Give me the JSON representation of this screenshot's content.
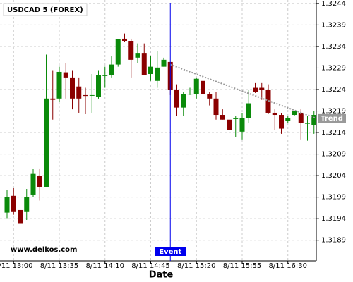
{
  "chart_data": {
    "type": "candlestick",
    "title": "USDCAD 5 (FOREX)",
    "x_label": "Date",
    "watermark": "www.delkos.com",
    "categories": [
      null,
      "8/11 13:00",
      null,
      null,
      null,
      null,
      null,
      null,
      "8/11 13:35",
      null,
      null,
      null,
      null,
      null,
      null,
      "8/11 14:10",
      null,
      null,
      null,
      null,
      null,
      null,
      "8/11 14:45",
      null,
      null,
      null,
      null,
      null,
      null,
      "8/11 15:20",
      null,
      null,
      null,
      null,
      null,
      null,
      "8/11 15:55",
      null,
      null,
      null,
      null,
      null,
      null,
      "8/11 16:30",
      null,
      null,
      null,
      null
    ],
    "open": [
      1.31954,
      1.31993,
      1.3196,
      1.31957,
      1.31996,
      1.32039,
      1.32014,
      1.32219,
      1.32219,
      1.3228,
      1.32268,
      1.32247,
      1.32227,
      1.32227,
      1.32222,
      1.32273,
      1.32273,
      1.32298,
      1.32358,
      1.32353,
      1.32314,
      1.32325,
      1.32276,
      1.3226,
      1.32293,
      1.32304,
      1.32239,
      1.32198,
      1.3223,
      1.3223,
      1.3226,
      1.3223,
      1.32219,
      1.32181,
      1.3217,
      1.32173,
      1.32142,
      1.32173,
      1.32244,
      1.32244,
      1.3224,
      1.32186,
      1.32181,
      1.32167,
      1.32181,
      1.32186,
      1.32162,
      1.32157
    ],
    "high": [
      1.32006,
      1.32011,
      1.31982,
      1.32009,
      1.32055,
      1.32055,
      1.32321,
      1.32285,
      1.32293,
      1.32301,
      1.32285,
      1.32268,
      1.32244,
      1.32276,
      1.32285,
      1.32293,
      1.32317,
      1.32357,
      1.3237,
      1.32358,
      1.32347,
      1.32347,
      1.32317,
      1.3233,
      1.32314,
      1.32304,
      1.32252,
      1.32235,
      1.32244,
      1.32268,
      1.32285,
      1.32235,
      1.32235,
      1.32194,
      1.32178,
      1.32178,
      1.32186,
      1.32239,
      1.32255,
      1.32255,
      1.32252,
      1.32194,
      1.32186,
      1.32178,
      1.3219,
      1.32194,
      1.32178,
      1.3219
    ],
    "low": [
      1.31941,
      1.31949,
      1.31928,
      1.31937,
      1.3199,
      1.31982,
      1.32014,
      1.3217,
      1.32211,
      1.32219,
      1.32194,
      1.32186,
      1.32183,
      1.32186,
      1.32219,
      1.32244,
      1.32268,
      1.32293,
      1.3235,
      1.32268,
      1.32301,
      1.32273,
      1.3226,
      1.32244,
      1.32293,
      1.32227,
      1.32178,
      1.32178,
      1.32227,
      1.32219,
      1.32203,
      1.32203,
      1.3217,
      1.3217,
      1.32101,
      1.32129,
      1.32124,
      1.32162,
      1.32232,
      1.32216,
      1.32183,
      1.32145,
      1.32137,
      1.32162,
      1.32178,
      1.32124,
      1.32121,
      1.32137
    ],
    "close": [
      1.3199,
      1.31957,
      1.31928,
      1.3199,
      1.32044,
      1.32014,
      1.32219,
      1.32216,
      1.32281,
      1.32268,
      1.32219,
      1.32219,
      1.32225,
      1.32227,
      1.32273,
      1.32273,
      1.32298,
      1.32357,
      1.32353,
      1.32309,
      1.32325,
      1.32273,
      1.32293,
      1.32291,
      1.32309,
      1.32239,
      1.32198,
      1.3223,
      1.3223,
      1.32265,
      1.3223,
      1.32219,
      1.32181,
      1.3217,
      1.32145,
      1.32173,
      1.32173,
      1.32208,
      1.32235,
      1.3224,
      1.32186,
      1.32181,
      1.32149,
      1.32173,
      1.3219,
      1.32162,
      1.32162,
      1.32181
    ],
    "up_color": "#0a8a0a",
    "down_color": "#8b0000",
    "ylim": [
      1.31842,
      1.32448
    ],
    "yticks": [
      1.3189,
      1.3194,
      1.3199,
      1.3204,
      1.3209,
      1.3214,
      1.3219,
      1.3224,
      1.3229,
      1.3234,
      1.3239,
      1.3244
    ],
    "grid": true,
    "event": {
      "label": "Event",
      "index": 25,
      "color": "#0000ee"
    },
    "trend": {
      "label": "Trend",
      "start_index": 25,
      "start_value": 1.32298,
      "end_index": 48,
      "end_value": 1.32173,
      "color": "#999999"
    }
  }
}
